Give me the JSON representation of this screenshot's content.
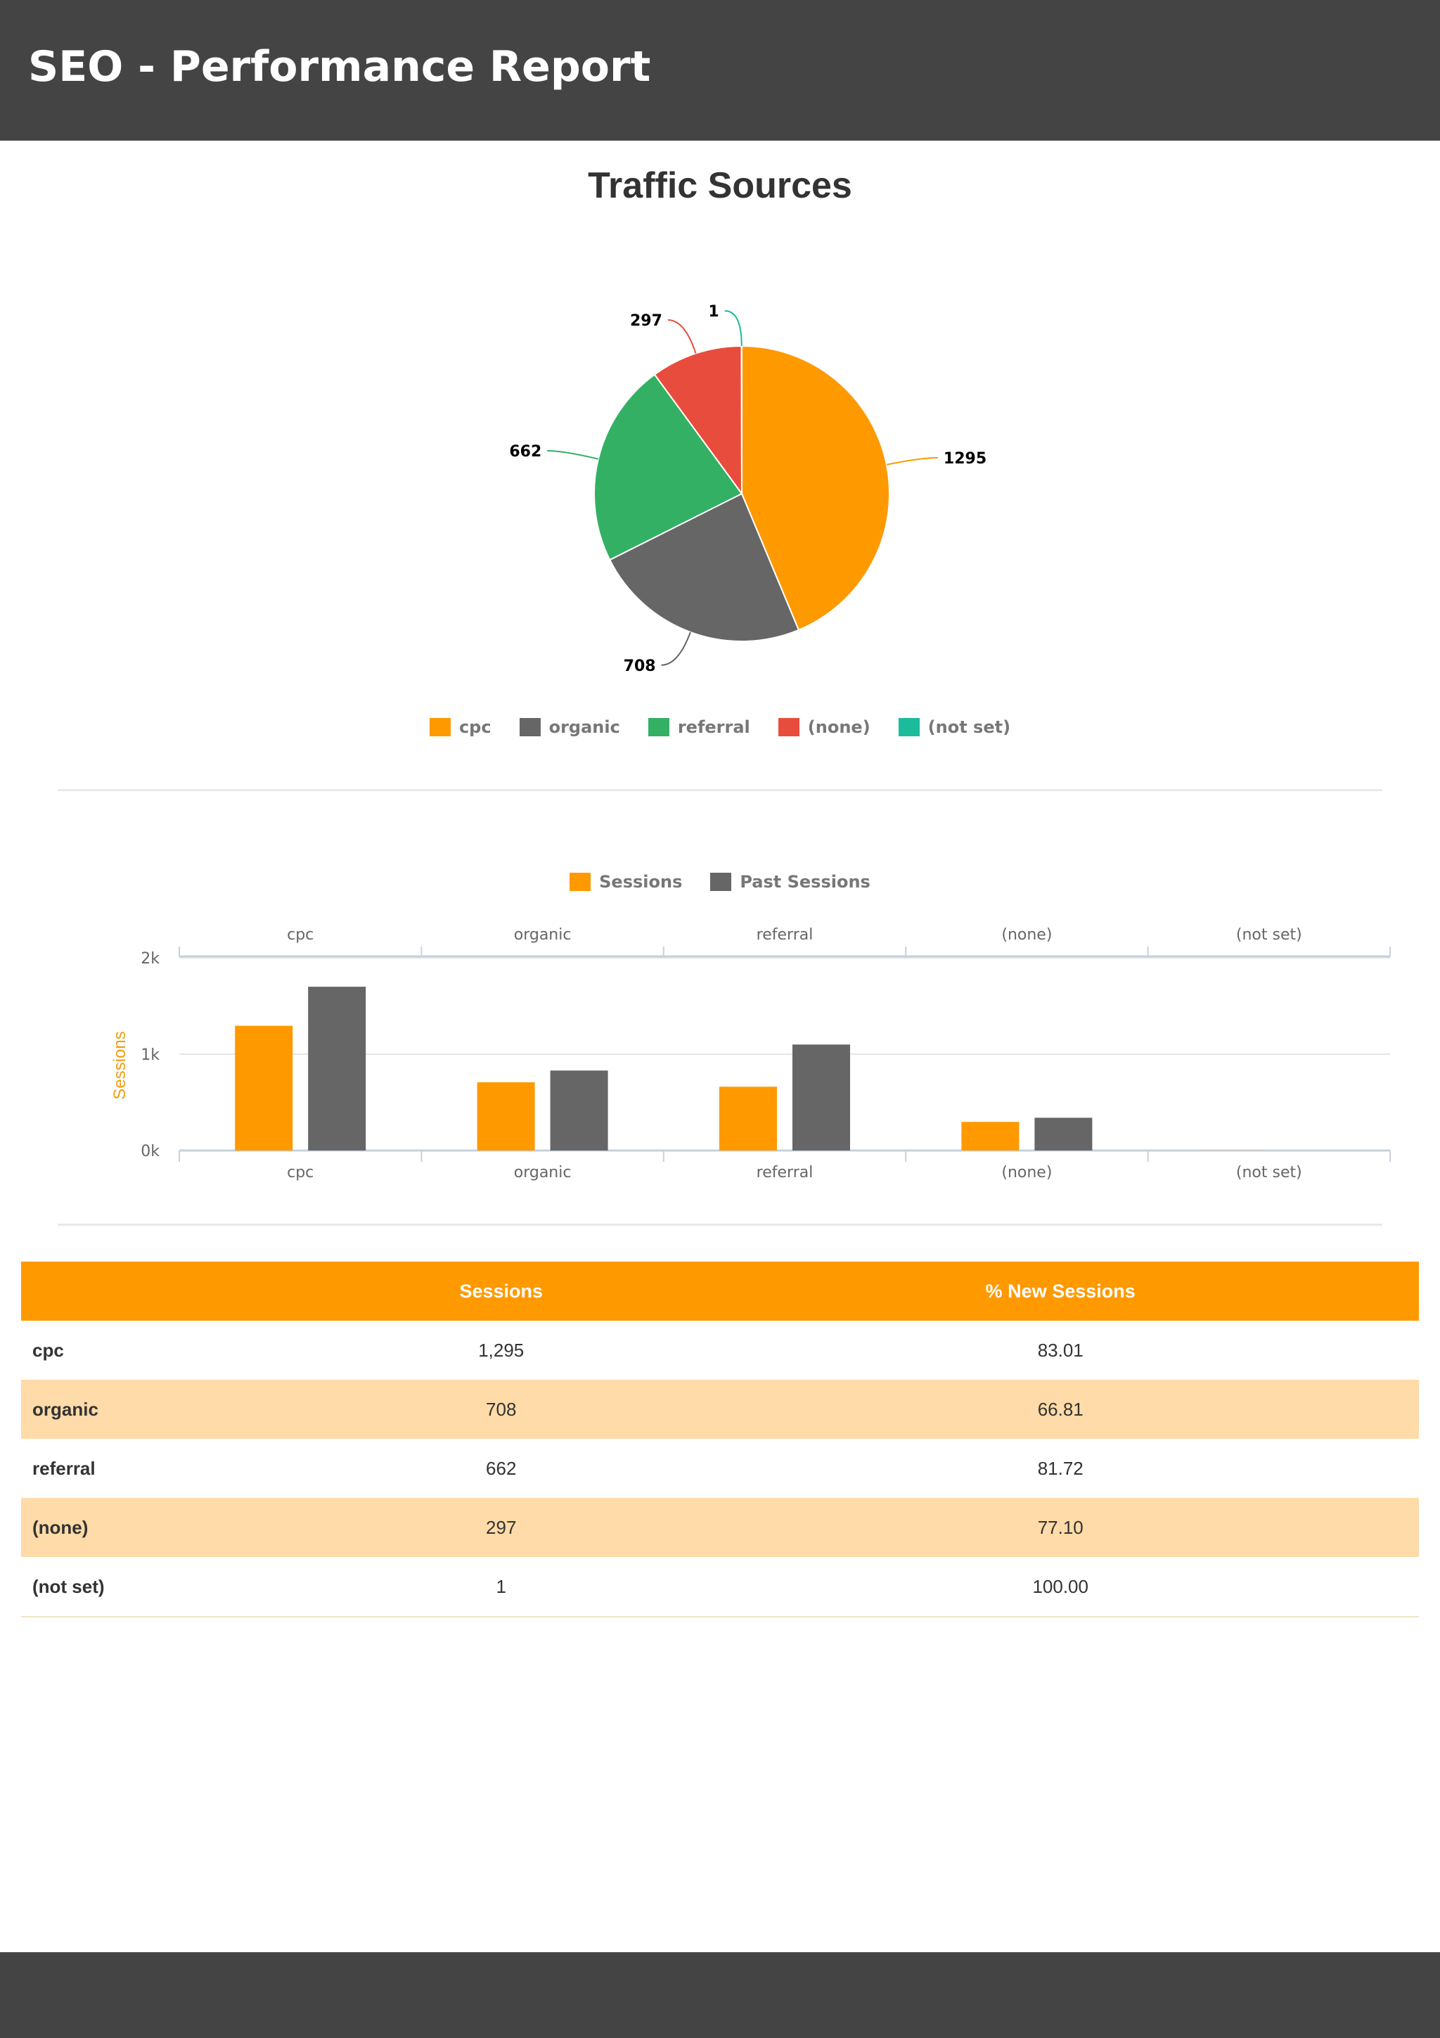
{
  "page": {
    "title": "SEO - Performance Report"
  },
  "colors": {
    "header_bg": "#444444",
    "accent": "#FF9900",
    "dark_series": "#666666",
    "table_alt_row": "#FEDBA8"
  },
  "chart_data": [
    {
      "type": "pie",
      "title": "Traffic Sources",
      "categories": [
        "cpc",
        "organic",
        "referral",
        "(none)",
        "(not set)"
      ],
      "values": [
        1295,
        708,
        662,
        297,
        1
      ],
      "colors": [
        "#FF9900",
        "#666666",
        "#33B064",
        "#E84C3D",
        "#1ABC9C"
      ],
      "legend_position": "bottom",
      "data_labels": true
    },
    {
      "type": "bar",
      "categories": [
        "cpc",
        "organic",
        "referral",
        "(none)",
        "(not set)"
      ],
      "series": [
        {
          "name": "Sessions",
          "values": [
            1295,
            708,
            662,
            297,
            1
          ],
          "color": "#FF9900"
        },
        {
          "name": "Past Sessions",
          "values": [
            1700,
            830,
            1100,
            340,
            0
          ],
          "color": "#666666"
        }
      ],
      "ylabel": "Sessions",
      "yticks": [
        "0k",
        "1k",
        "2k"
      ],
      "ylim": [
        0,
        2000
      ],
      "grid": true,
      "legend_position": "top"
    }
  ],
  "table": {
    "headers": [
      "",
      "Sessions",
      "% New Sessions"
    ],
    "rows": [
      [
        "cpc",
        "1,295",
        "83.01"
      ],
      [
        "organic",
        "708",
        "66.81"
      ],
      [
        "referral",
        "662",
        "81.72"
      ],
      [
        "(none)",
        "297",
        "77.10"
      ],
      [
        "(not set)",
        "1",
        "100.00"
      ]
    ]
  }
}
